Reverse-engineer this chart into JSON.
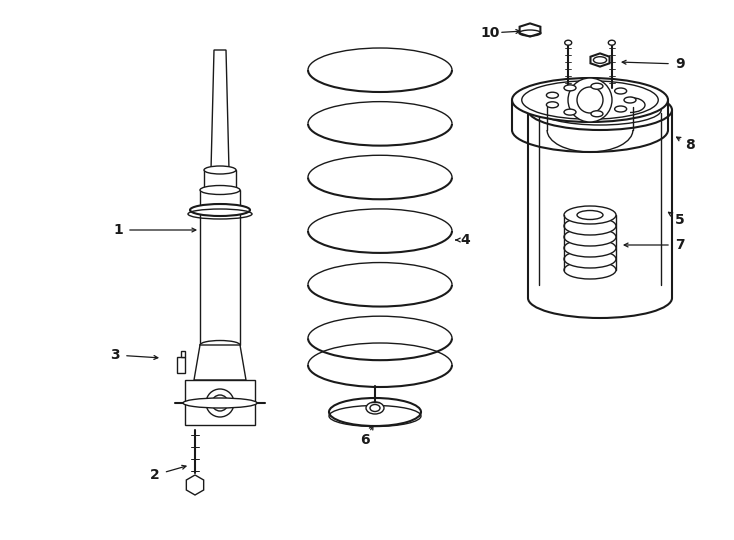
{
  "bg_color": "#ffffff",
  "line_color": "#1a1a1a",
  "lw": 1.0,
  "lw2": 1.5,
  "fig_w": 7.34,
  "fig_h": 5.4,
  "dpi": 100
}
